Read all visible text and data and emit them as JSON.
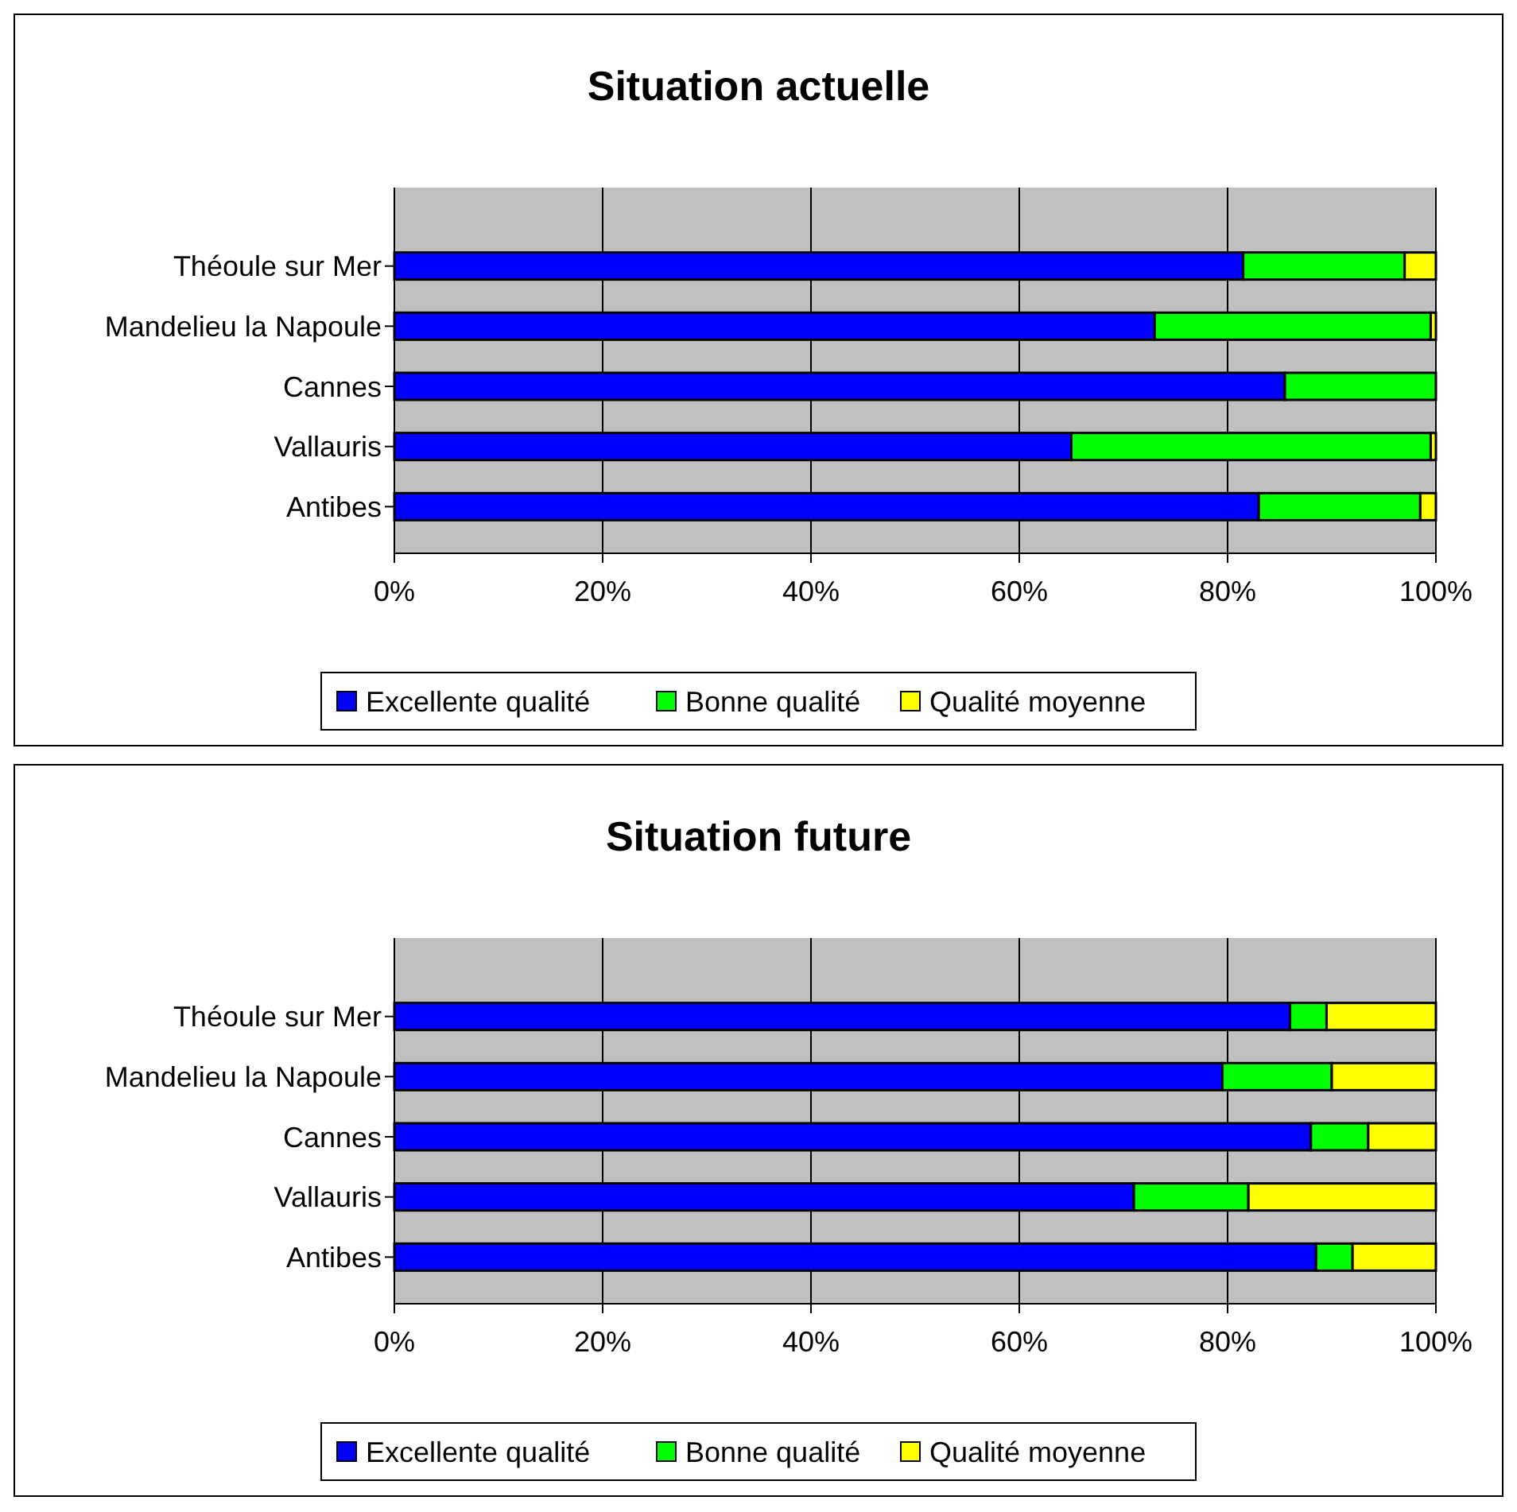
{
  "chart_data": [
    {
      "type": "bar",
      "orientation": "horizontal",
      "stacked": true,
      "title": "Situation actuelle",
      "categories": [
        "Théoule sur Mer",
        "Mandelieu la Napoule",
        "Cannes",
        "Vallauris",
        "Antibes"
      ],
      "series": [
        {
          "name": "Excellente qualité",
          "color": "#0000ff",
          "values": [
            81.5,
            73,
            85.5,
            65,
            83
          ]
        },
        {
          "name": "Bonne qualité",
          "color": "#00ff00",
          "values": [
            15.5,
            26.5,
            14.5,
            34.5,
            15.5
          ]
        },
        {
          "name": "Qualité moyenne",
          "color": "#ffff00",
          "values": [
            3,
            0.5,
            0,
            0.5,
            1.5
          ]
        }
      ],
      "xlim": [
        0,
        100
      ],
      "xticks": [
        {
          "value": 0,
          "label": "0%"
        },
        {
          "value": 20,
          "label": "20%"
        },
        {
          "value": 40,
          "label": "40%"
        },
        {
          "value": 60,
          "label": "60%"
        },
        {
          "value": 80,
          "label": "80%"
        },
        {
          "value": 100,
          "label": "100%"
        }
      ],
      "grid": "x",
      "legend": "bottom"
    },
    {
      "type": "bar",
      "orientation": "horizontal",
      "stacked": true,
      "title": "Situation future",
      "categories": [
        "Théoule sur Mer",
        "Mandelieu la Napoule",
        "Cannes",
        "Vallauris",
        "Antibes"
      ],
      "series": [
        {
          "name": "Excellente qualité",
          "color": "#0000ff",
          "values": [
            86,
            79.5,
            88,
            71,
            88.5
          ]
        },
        {
          "name": "Bonne qualité",
          "color": "#00ff00",
          "values": [
            3.5,
            10.5,
            5.5,
            11,
            3.5
          ]
        },
        {
          "name": "Qualité moyenne",
          "color": "#ffff00",
          "values": [
            10.5,
            10,
            6.5,
            18,
            8
          ]
        }
      ],
      "xlim": [
        0,
        100
      ],
      "xticks": [
        {
          "value": 0,
          "label": "0%"
        },
        {
          "value": 20,
          "label": "20%"
        },
        {
          "value": 40,
          "label": "40%"
        },
        {
          "value": 60,
          "label": "60%"
        },
        {
          "value": 80,
          "label": "80%"
        },
        {
          "value": 100,
          "label": "100%"
        }
      ],
      "grid": "x",
      "legend": "bottom"
    }
  ]
}
